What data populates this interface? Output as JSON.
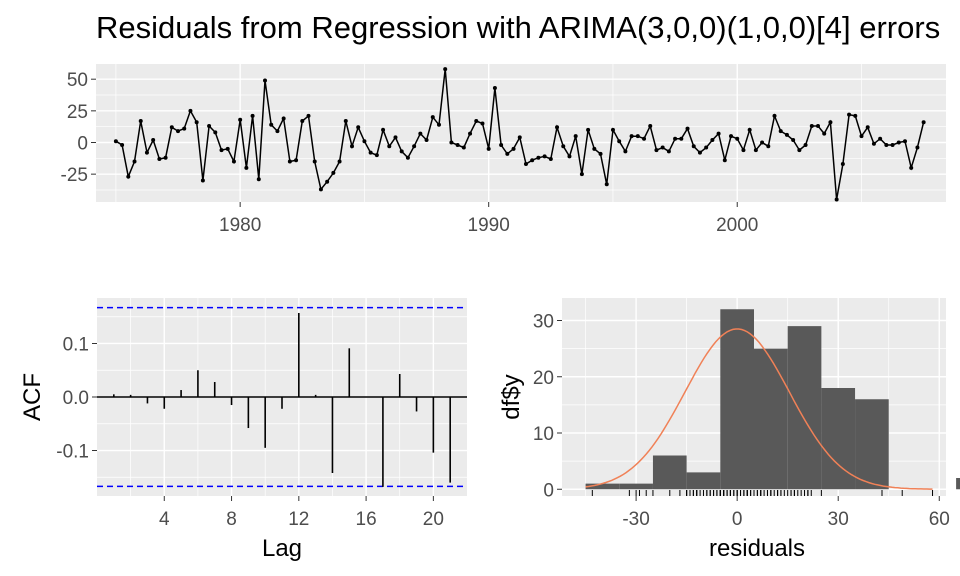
{
  "title": "Residuals from Regression with ARIMA(3,0,0)(1,0,0)[4] errors",
  "colors": {
    "panel": "#ebebeb",
    "grid": "#ffffff",
    "line": "#000000",
    "bar": "#595959",
    "density": "#f08157",
    "bound": "#0000ff"
  },
  "chart_data": [
    {
      "type": "line",
      "x_start": 1975.0,
      "x_step": 0.25,
      "values": [
        1,
        -2,
        -27,
        -15,
        17,
        -8,
        2,
        -13,
        -12,
        12,
        9,
        11,
        25,
        16,
        -30,
        13,
        8,
        -6,
        -5,
        -15,
        18,
        -20,
        21,
        -29,
        49,
        14,
        9,
        19,
        -15,
        -14,
        17,
        21,
        -15,
        -37,
        -31,
        -24,
        -15,
        17,
        -3,
        12,
        1,
        -8,
        -10,
        10,
        -3,
        4,
        -7,
        -12,
        -3,
        7,
        2,
        20,
        14,
        58,
        0,
        -2,
        -4,
        7,
        17,
        15,
        -5,
        43,
        -2,
        -9,
        -5,
        4,
        -17,
        -14,
        -12,
        -11,
        -13,
        12,
        -3,
        -11,
        5,
        -25,
        10,
        -5,
        -9,
        -33,
        10,
        1,
        -7,
        5,
        5,
        3,
        13,
        -6,
        -4,
        -7,
        3,
        3,
        11,
        -3,
        -8,
        -4,
        2,
        7,
        -14,
        5,
        3,
        -6,
        10,
        -6,
        0,
        -3,
        21,
        9,
        6,
        2,
        -6,
        -2,
        13,
        13,
        7,
        16,
        -45,
        -17,
        22,
        21,
        5,
        12,
        -1,
        3,
        -2,
        -2,
        0,
        1,
        -20,
        -4,
        16
      ],
      "x_ticks": [
        "1980",
        "1990",
        "2000"
      ],
      "y_ticks": [
        "50",
        "25",
        "0",
        "-25"
      ],
      "xlim": [
        1974.2,
        2008.4
      ],
      "ylim": [
        -47,
        62
      ]
    },
    {
      "type": "bar",
      "xlabel": "Lag",
      "ylabel": "ACF",
      "lags": [
        1,
        2,
        3,
        4,
        5,
        6,
        7,
        8,
        9,
        10,
        11,
        12,
        13,
        14,
        15,
        16,
        17,
        18,
        19,
        20,
        21
      ],
      "values": [
        0.005,
        0.004,
        -0.012,
        -0.022,
        0.013,
        0.05,
        0.028,
        -0.015,
        -0.058,
        -0.095,
        -0.022,
        0.157,
        0.004,
        -0.142,
        0.091,
        0.0,
        -0.168,
        0.043,
        -0.027,
        -0.104,
        -0.16
      ],
      "bound": 0.167,
      "x_ticks": [
        "4",
        "8",
        "12",
        "16",
        "20"
      ],
      "y_ticks": [
        "0.1",
        "0.0",
        "-0.1"
      ],
      "xlim": [
        0.0,
        22.0
      ],
      "ylim": [
        -0.185,
        0.185
      ]
    },
    {
      "type": "bar",
      "xlabel": "residuals",
      "ylabel": "df$y",
      "bin_start": -45,
      "bin_width": 10,
      "counts": [
        1,
        1,
        6,
        3,
        32,
        25,
        29,
        18,
        16,
        0,
        0,
        2,
        1
      ],
      "density_peak": 28.5,
      "density_sd": 15.5,
      "density_range": [
        -45,
        58
      ],
      "rug": [
        -43,
        -32,
        -30,
        -29,
        -27,
        -25,
        -20,
        -17,
        -15,
        -15,
        -15,
        -14,
        -13,
        -13,
        -12,
        -12,
        -12,
        -11,
        -10,
        -9,
        -9,
        -8,
        -8,
        -7,
        -7,
        -6,
        -6,
        -6,
        -6,
        -5,
        -5,
        -5,
        -5,
        -4,
        -4,
        -4,
        -4,
        -3,
        -3,
        -3,
        -3,
        -3,
        -2,
        -2,
        -2,
        -2,
        -1,
        -1,
        0,
        0,
        0,
        0,
        1,
        1,
        1,
        2,
        2,
        2,
        3,
        3,
        3,
        3,
        4,
        4,
        5,
        5,
        5,
        6,
        6,
        7,
        7,
        7,
        8,
        9,
        9,
        10,
        10,
        10,
        11,
        12,
        12,
        12,
        13,
        13,
        13,
        14,
        15,
        16,
        16,
        17,
        17,
        17,
        18,
        19,
        20,
        21,
        21,
        21,
        22,
        25,
        43,
        49,
        58
      ],
      "x_ticks": [
        "-30",
        "0",
        "30",
        "60"
      ],
      "y_ticks": [
        "30",
        "20",
        "10",
        "0"
      ],
      "xlim": [
        -52,
        62
      ],
      "ylim": [
        -1.2,
        34
      ]
    }
  ]
}
